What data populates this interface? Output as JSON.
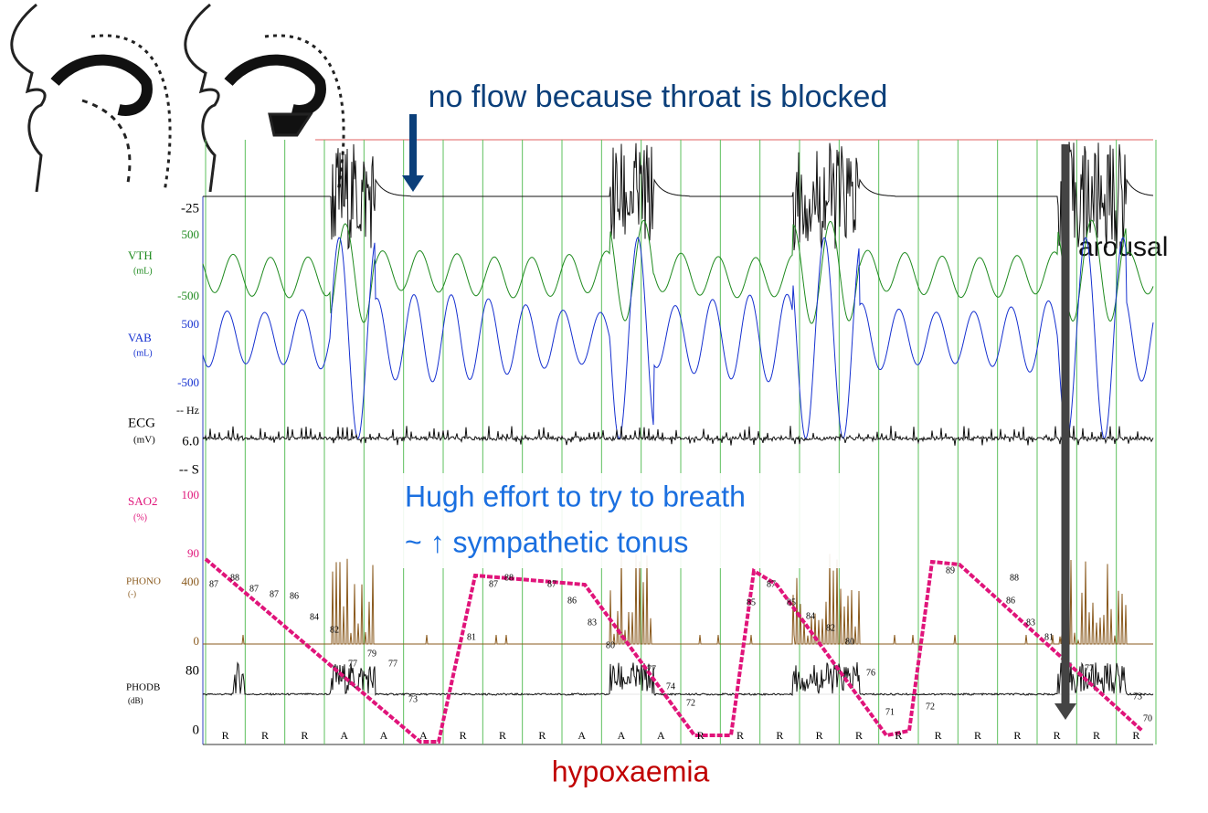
{
  "annotations": {
    "top": "no flow because throat is blocked",
    "arousal": "arousal",
    "effort_1": "Hugh effort to try to breath",
    "effort_2": "~ ↑ sympathetic tonus",
    "bottom": "hypoxaemia"
  },
  "channels": {
    "flow": {
      "scale_top": "-25"
    },
    "vth": {
      "name": "VTH",
      "unit": "(mL)",
      "scale_top": "500",
      "scale_bottom": "-500"
    },
    "vab": {
      "name": "VAB",
      "unit": "(mL)",
      "scale_top": "500",
      "scale_bottom": "-500"
    },
    "ecg": {
      "name": "ECG",
      "unit": "(mV)",
      "hz": "-- Hz",
      "value": "6.0",
      "s": "-- S"
    },
    "sao2": {
      "name": "SAO2",
      "unit": "(%)",
      "scale_top": "100",
      "scale_bottom": "90"
    },
    "phono": {
      "name": "PHONO",
      "unit": "(-)",
      "scale_top": "400",
      "scale_bottom": "0"
    },
    "phodb": {
      "name": "PHODB",
      "unit": "(dB)",
      "scale_top": "80",
      "scale_bottom": "0"
    }
  },
  "epochs": [
    "R",
    "R",
    "R",
    "A",
    "A",
    "A",
    "R",
    "R",
    "R",
    "A",
    "A",
    "A",
    "R",
    "R",
    "R",
    "R",
    "R",
    "R",
    "R",
    "R",
    "R",
    "R",
    "R",
    "R"
  ],
  "sao2_labels": [
    "87",
    "88",
    "87",
    "87",
    "86",
    "84",
    "82",
    "79",
    "77",
    "77",
    "73",
    "81",
    "87",
    "88",
    "87",
    "86",
    "83",
    "80",
    "77",
    "74",
    "72",
    "85",
    "87",
    "85",
    "84",
    "82",
    "80",
    "76",
    "71",
    "72",
    "89",
    "88",
    "86",
    "83",
    "81",
    "77",
    "73",
    "70"
  ]
}
